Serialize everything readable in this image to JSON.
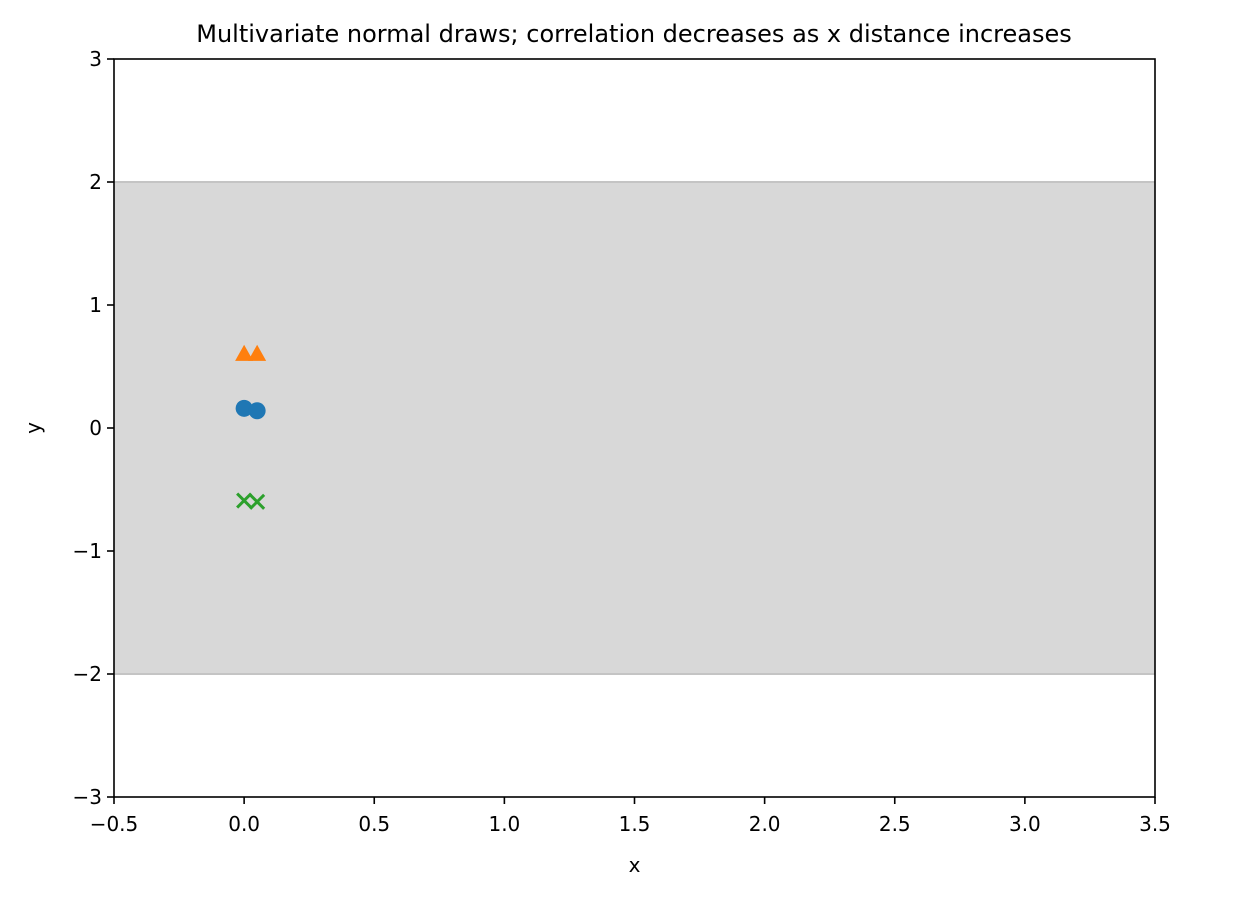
{
  "chart_data": {
    "type": "scatter",
    "title": "Multivariate normal draws; correlation decreases as x distance increases",
    "xlabel": "x",
    "ylabel": "y",
    "xlim": [
      -0.5,
      3.5
    ],
    "ylim": [
      -3,
      3
    ],
    "xticks": [
      -0.5,
      0.0,
      0.5,
      1.0,
      1.5,
      2.0,
      2.5,
      3.0,
      3.5
    ],
    "xtick_labels": [
      "−0.5",
      "0.0",
      "0.5",
      "1.0",
      "1.5",
      "2.0",
      "2.5",
      "3.0",
      "3.5"
    ],
    "yticks": [
      -3,
      -2,
      -1,
      0,
      1,
      2,
      3
    ],
    "ytick_labels": [
      "−3",
      "−2",
      "−1",
      "0",
      "1",
      "2",
      "3"
    ],
    "grid": false,
    "band": {
      "y_low": -2,
      "y_high": 2,
      "color": "#d8d8d8"
    },
    "series": [
      {
        "marker": "circle",
        "color": "#1f77b4",
        "x": [
          0.0,
          0.05
        ],
        "y": [
          0.16,
          0.14
        ]
      },
      {
        "marker": "triangle",
        "color": "#ff7f0e",
        "x": [
          0.0,
          0.05
        ],
        "y": [
          0.6,
          0.6
        ]
      },
      {
        "marker": "x",
        "color": "#2ca02c",
        "x": [
          0.0,
          0.05
        ],
        "y": [
          -0.59,
          -0.6
        ]
      }
    ]
  }
}
